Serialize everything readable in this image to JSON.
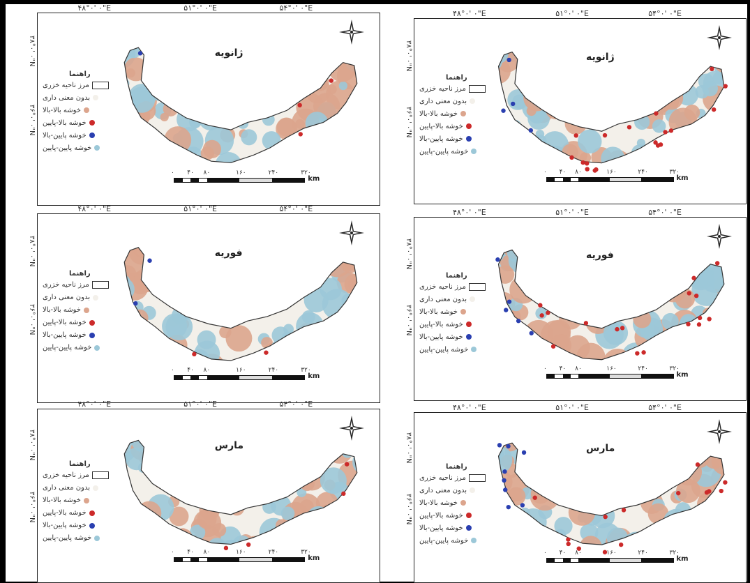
{
  "legend": {
    "title": "راهنما",
    "items": [
      {
        "label": "مرز ناحیه خزری",
        "symbol": "box",
        "color": "#ffffff"
      },
      {
        "label": "بدون معنی داری",
        "symbol": "dot",
        "color": "#f3f0ea"
      },
      {
        "label": "خوشه بالا-بالا",
        "symbol": "dot",
        "color": "#dca58d"
      },
      {
        "label": "خوشه بالا-پایین",
        "symbol": "dot",
        "color": "#cc2a2a"
      },
      {
        "label": "خوشه پایین-بالا",
        "symbol": "dot",
        "color": "#2a3fb0"
      },
      {
        "label": "خوشه پایین-پایین",
        "symbol": "dot",
        "color": "#9cc8d8"
      }
    ]
  },
  "longitudes": [
    "۴۸°۰' ۰\"E",
    "۵۱°۰' ۰\"E",
    "۵۴°۰' ۰\"E"
  ],
  "latitudes": [
    "۳۸°۰' ۰\"N",
    "۳۶°۰' ۰\"N"
  ],
  "scale": {
    "ticks": [
      "۰",
      "۴۰",
      "۸۰",
      "۱۶۰",
      "۲۴۰",
      "۳۲۰"
    ],
    "unit": "km"
  },
  "panels": [
    {
      "id": "left-jan",
      "title": "ژانویه"
    },
    {
      "id": "right-jan",
      "title": "ژانویه"
    },
    {
      "id": "left-feb",
      "title": "فوریه"
    },
    {
      "id": "right-feb",
      "title": "فوریه"
    },
    {
      "id": "left-mar",
      "title": "مارس"
    },
    {
      "id": "right-mar",
      "title": "مارس"
    }
  ],
  "colors": {
    "ns": "#f3f0ea",
    "hh": "#dca58d",
    "hl": "#cc2a2a",
    "lh": "#2a3fb0",
    "ll": "#9cc8d8",
    "outline": "#333333"
  }
}
